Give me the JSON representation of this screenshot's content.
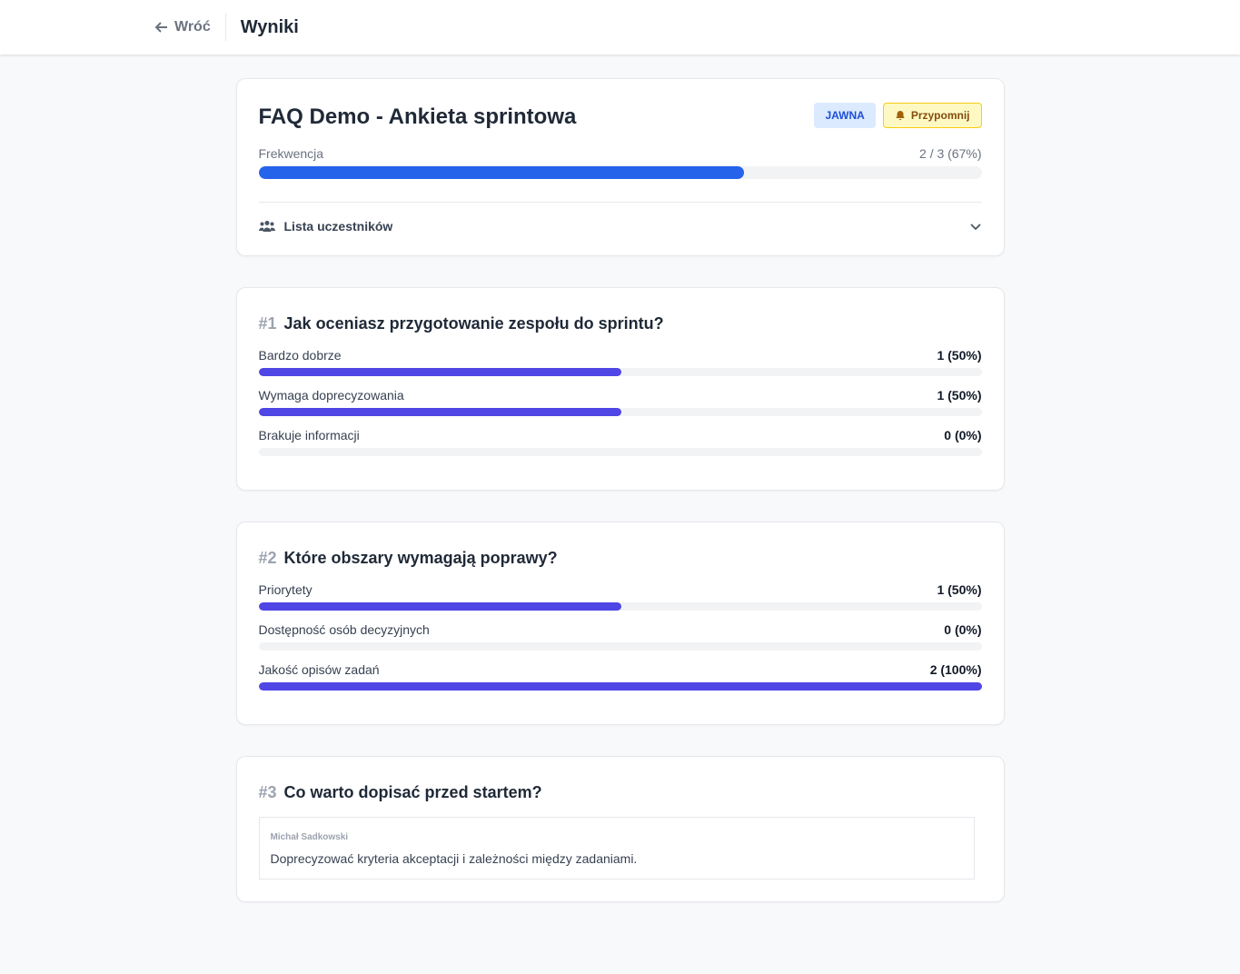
{
  "header": {
    "back": "Wróć",
    "title": "Wyniki"
  },
  "survey": {
    "title": "FAQ Demo - Ankieta sprintowa",
    "badge": "JAWNA",
    "remind": "Przypomnij",
    "attendance_label": "Frekwencja",
    "attendance_text": "2 / 3 (67%)",
    "attendance": 67,
    "participants": "Lista uczestników"
  },
  "questions": [
    {
      "number": "#1",
      "text": "Jak oceniasz przygotowanie zespołu do sprintu?",
      "options": [
        {
          "label": "Bardzo dobrze",
          "result": "1 (50%)",
          "percent": 50
        },
        {
          "label": "Wymaga doprecyzowania",
          "result": "1 (50%)",
          "percent": 50
        },
        {
          "label": "Brakuje informacji",
          "result": "0 (0%)",
          "percent": 0
        }
      ]
    },
    {
      "number": "#2",
      "text": "Które obszary wymagają poprawy?",
      "options": [
        {
          "label": "Priorytety",
          "result": "1 (50%)",
          "percent": 50
        },
        {
          "label": "Dostępność osób decyzyjnych",
          "result": "0 (0%)",
          "percent": 0
        },
        {
          "label": "Jakość opisów zadań",
          "result": "2 (100%)",
          "percent": 100
        }
      ]
    },
    {
      "number": "#3",
      "text": "Co warto dopisać przed startem?",
      "answers": [
        {
          "author": "Michał Sadkowski",
          "text": "Doprecyzować kryteria akceptacji i zależności między zadaniami."
        }
      ]
    }
  ]
}
